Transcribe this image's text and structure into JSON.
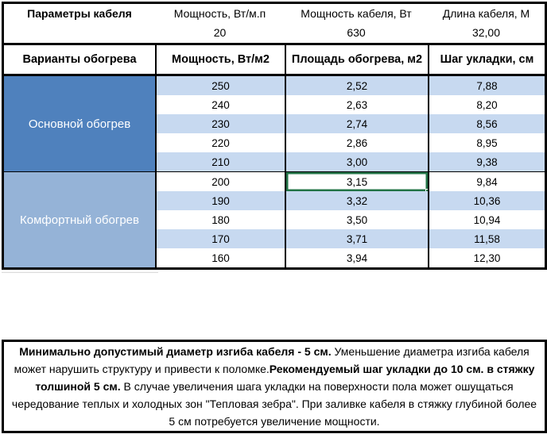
{
  "cable_params": {
    "title": "Параметры кабеля",
    "items": [
      {
        "label": "Мощность, Вт/м.п",
        "value": "20"
      },
      {
        "label": "Мощность кабеля, Вт",
        "value": "630"
      },
      {
        "label": "Длина кабеля, М",
        "value": "32,00"
      }
    ]
  },
  "heating_table": {
    "headers": {
      "variants": "Варианты обогрева",
      "power": "Мощность, Вт/м2",
      "area": "Площадь обогрева, м2",
      "step": "Шаг укладки, см"
    },
    "sections": [
      {
        "label": "Основной обогрев",
        "color": "#4F81BD",
        "rows": [
          {
            "power": "250",
            "area": "2,52",
            "step": "7,88"
          },
          {
            "power": "240",
            "area": "2,63",
            "step": "8,20"
          },
          {
            "power": "230",
            "area": "2,74",
            "step": "8,56"
          },
          {
            "power": "220",
            "area": "2,86",
            "step": "8,95"
          },
          {
            "power": "210",
            "area": "3,00",
            "step": "9,38"
          }
        ]
      },
      {
        "label": "Комфортный обогрев",
        "color": "#95B3D7",
        "rows": [
          {
            "power": "200",
            "area": "3,15",
            "step": "9,84"
          },
          {
            "power": "190",
            "area": "3,32",
            "step": "10,36"
          },
          {
            "power": "180",
            "area": "3,50",
            "step": "10,94"
          },
          {
            "power": "170",
            "area": "3,71",
            "step": "11,58"
          },
          {
            "power": "160",
            "area": "3,94",
            "step": "12,30"
          }
        ]
      }
    ],
    "selection": {
      "value": "3,15",
      "row_power": "200",
      "column": "Площадь обогрева, м2",
      "border_color": "#217346"
    }
  },
  "note": {
    "segments": [
      {
        "style": "bold",
        "text": "Минимально допустимый диаметр изгиба кабеля - 5 см."
      },
      {
        "style": "regular",
        "text": "  Уменьшение диаметра изгиба кабеля может нарушить структуру и привести к поломке."
      },
      {
        "style": "bold",
        "text": "Рекомендуемый шаг укладки до 10 см. в стяжку толшиной 5 см."
      },
      {
        "style": "regular",
        "text": " В  случае увеличения шага укладки на поверхности пола может ошущаться чередование теплых и холодных зон \"Тепловая зебра\". При заливке кабеля в стяжку глубиной более 5 см потребуется увеличение мощности."
      }
    ]
  },
  "colors": {
    "section_main": "#4F81BD",
    "section_comfort": "#95B3D7",
    "row_stripe": "#C7D9F0",
    "row_plain": "#FFFFFF",
    "border": "#000000",
    "selection_green": "#217346"
  }
}
